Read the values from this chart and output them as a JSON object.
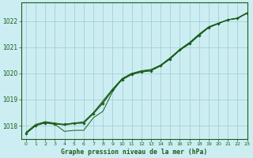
{
  "title": "Graphe pression niveau de la mer (hPa)",
  "background_color": "#cceef2",
  "grid_color": "#aad4d8",
  "line_color": "#1a5c1a",
  "xlim": [
    -0.5,
    23
  ],
  "ylim": [
    1017.5,
    1022.7
  ],
  "yticks": [
    1018,
    1019,
    1020,
    1021,
    1022
  ],
  "xticks": [
    0,
    1,
    2,
    3,
    4,
    5,
    6,
    7,
    8,
    9,
    10,
    11,
    12,
    13,
    14,
    15,
    16,
    17,
    18,
    19,
    20,
    21,
    22,
    23
  ],
  "series_main": [
    1017.7,
    1018.0,
    1018.1,
    1018.05,
    1018.05,
    1018.1,
    1018.1,
    1018.45,
    1018.85,
    1019.35,
    1019.75,
    1019.95,
    1020.05,
    1020.1,
    1020.3,
    1020.55,
    1020.9,
    1021.15,
    1021.45,
    1021.75,
    1021.9,
    1022.05,
    1022.1,
    1022.3
  ],
  "series_smooth1": [
    1017.75,
    1018.05,
    1018.15,
    1018.1,
    1018.05,
    1018.1,
    1018.15,
    1018.5,
    1018.95,
    1019.4,
    1019.8,
    1020.0,
    1020.1,
    1020.15,
    1020.32,
    1020.6,
    1020.92,
    1021.18,
    1021.5,
    1021.78,
    1021.92,
    1022.05,
    1022.12,
    1022.32
  ],
  "series_dip": [
    1017.7,
    1018.0,
    1018.15,
    1018.05,
    1017.78,
    1017.82,
    1017.82,
    1018.3,
    1018.55,
    1019.3,
    1019.8,
    1020.0,
    1020.05,
    1020.1,
    1020.28,
    1020.55,
    1020.88,
    1021.12,
    1021.45,
    1021.75,
    1021.9,
    1022.05,
    1022.1,
    1022.3
  ],
  "series_smooth2": [
    1017.72,
    1018.02,
    1018.12,
    1018.08,
    1018.02,
    1018.08,
    1018.1,
    1018.48,
    1018.9,
    1019.38,
    1019.78,
    1019.98,
    1020.08,
    1020.12,
    1020.3,
    1020.58,
    1020.9,
    1021.16,
    1021.48,
    1021.77,
    1021.91,
    1022.04,
    1022.11,
    1022.31
  ]
}
